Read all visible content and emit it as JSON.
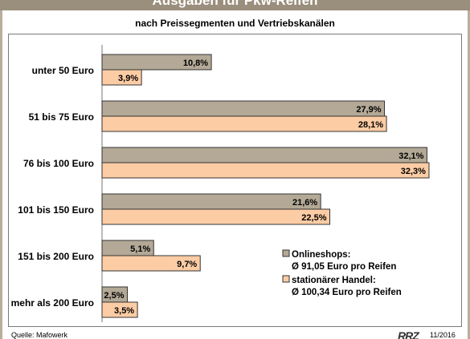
{
  "chart_data": {
    "type": "bar",
    "orientation": "horizontal",
    "title": "Ausgaben für Pkw-Reifen",
    "subtitle": "nach Preissegmenten und Vertriebskanälen",
    "categories": [
      "unter 50 Euro",
      "51 bis 75 Euro",
      "76 bis 100 Euro",
      "101 bis 150 Euro",
      "151 bis 200 Euro",
      "mehr als 200 Euro"
    ],
    "series": [
      {
        "name": "Onlineshops:",
        "name2": "Ø 91,05 Euro pro Reifen",
        "values": [
          10.8,
          27.9,
          32.1,
          21.6,
          5.1,
          2.5
        ],
        "labels": [
          "10,8%",
          "27,9%",
          "32,1%",
          "21,6%",
          "5,1%",
          "2,5%"
        ],
        "color": "#b3a996"
      },
      {
        "name": "stationärer Handel:",
        "name2": "Ø 100,34 Euro pro Reifen",
        "values": [
          3.9,
          28.1,
          32.3,
          22.5,
          9.7,
          3.5
        ],
        "labels": [
          "3,9%",
          "28,1%",
          "32,3%",
          "22,5%",
          "9,7%",
          "3,5%"
        ],
        "color": "#fccca4"
      }
    ],
    "xlim": [
      0,
      35
    ],
    "grid": false,
    "legend": "bottom-right"
  },
  "footer": {
    "source": "Quelle: Mafowerk",
    "brand": "RRZ",
    "date": "11/2016"
  }
}
